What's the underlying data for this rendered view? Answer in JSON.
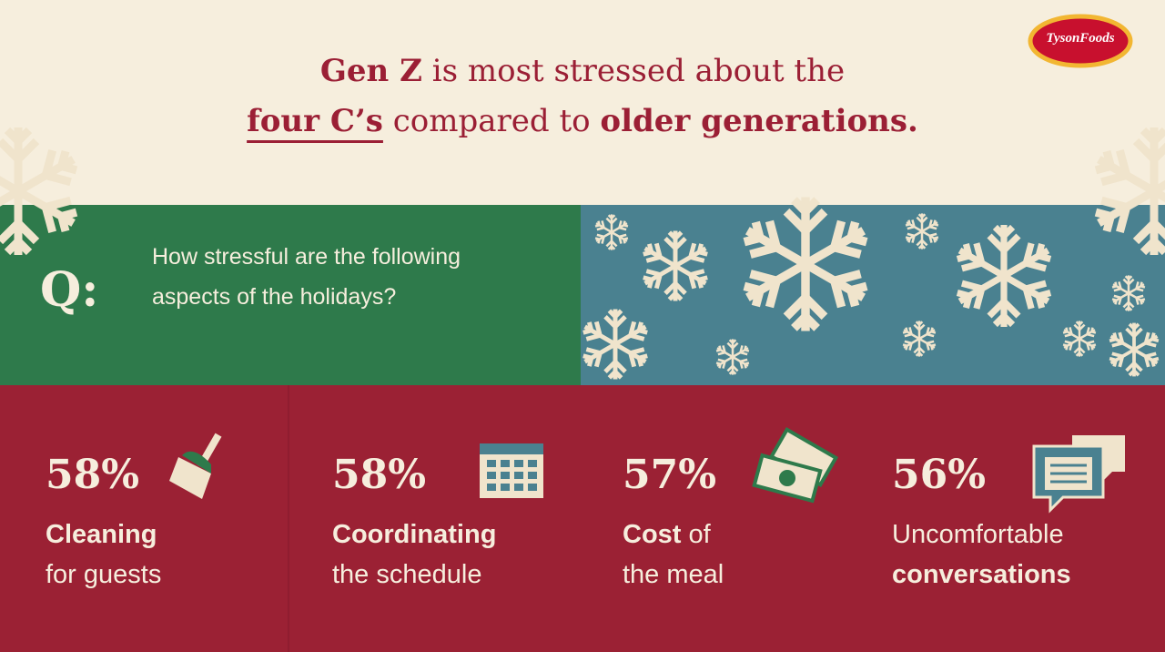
{
  "logo": "TysonFoods",
  "title": {
    "line1": [
      {
        "text": "Gen Z",
        "bold": true
      },
      {
        "text": " is most stressed about the",
        "bold": false
      }
    ],
    "line2": [
      {
        "text": "four C’s",
        "bold": true
      },
      {
        "text": " compared to ",
        "bold": false
      },
      {
        "text": "older generations.",
        "bold": true
      }
    ]
  },
  "question": {
    "marker": "Q:",
    "text": "How stressful are the following aspects of the holidays?"
  },
  "stats": [
    {
      "value": "58%",
      "line1": [
        {
          "text": "Cleaning",
          "bold": true
        }
      ],
      "line2": [
        {
          "text": "for guests",
          "bold": false
        }
      ]
    },
    {
      "value": "58%",
      "line1": [
        {
          "text": "Coordinating",
          "bold": true
        }
      ],
      "line2": [
        {
          "text": "the schedule",
          "bold": false
        }
      ]
    },
    {
      "value": "57%",
      "line1": [
        {
          "text": "Cost",
          "bold": true
        },
        {
          "text": " of",
          "bold": false
        }
      ],
      "line2": [
        {
          "text": "the meal",
          "bold": false
        }
      ]
    },
    {
      "value": "56%",
      "line1": [
        {
          "text": "Uncomfortable",
          "bold": false
        }
      ],
      "line2": [
        {
          "text": "conversations",
          "bold": true
        }
      ]
    }
  ]
}
